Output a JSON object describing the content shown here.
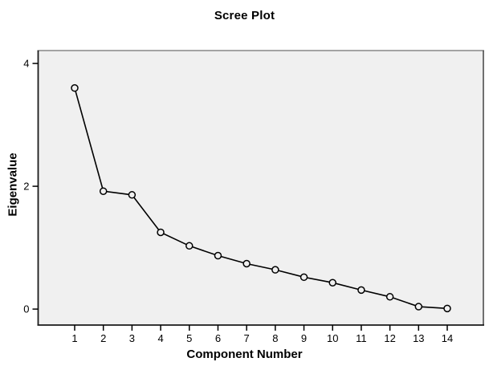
{
  "chart_data": {
    "type": "line",
    "title": "Scree Plot",
    "xlabel": "Component Number",
    "ylabel": "Eigenvalue",
    "x": [
      1,
      2,
      3,
      4,
      5,
      6,
      7,
      8,
      9,
      10,
      11,
      12,
      13,
      14
    ],
    "values": [
      3.6,
      1.92,
      1.86,
      1.25,
      1.03,
      0.87,
      0.74,
      0.64,
      0.52,
      0.43,
      0.31,
      0.2,
      0.04,
      0.01
    ],
    "yticks": [
      0,
      2,
      4
    ],
    "ylim": [
      -0.26,
      4.21
    ],
    "grid": false,
    "legend": null,
    "marker": "open-circle",
    "line_color": "#000000",
    "marker_stroke": "#000000",
    "plot_bg": "#f0f0f0",
    "page_bg": "#ffffff"
  }
}
